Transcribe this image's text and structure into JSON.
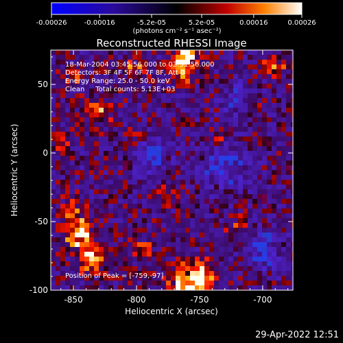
{
  "chart_data": {
    "type": "heatmap",
    "title": "Reconstructed RHESSI Image",
    "xlabel": "Heliocentric X (arcsec)",
    "ylabel": "Heliocentric Y (arcsec)",
    "xlim": [
      -868,
      -676
    ],
    "ylim": [
      -100,
      75
    ],
    "x_ticks": [
      -850,
      -800,
      -750,
      -700
    ],
    "y_ticks": [
      -100,
      -50,
      0,
      50
    ],
    "x_tick_labels": [
      "-850",
      "-800",
      "-750",
      "-700"
    ],
    "y_tick_labels": [
      "-100",
      "-50",
      "0",
      "50"
    ],
    "colorbar": {
      "min": -0.00026,
      "max": 0.00026,
      "ticks": [
        -0.00026,
        -0.00016,
        -5.2e-05,
        5.2e-05,
        0.00016,
        0.00026
      ],
      "tick_labels": [
        "-0.00026",
        "-0.00016",
        "-5.2e-05",
        "5.2e-05",
        "0.00016",
        "0.00026"
      ],
      "units_label": "(photons cm⁻² s⁻¹ asec⁻²)"
    },
    "peak": [
      -759,
      -97
    ]
  },
  "annotations": {
    "time_range": "18-Mar-2004 03:45:56.000 to 03:51:56.000",
    "detectors": "Detectors: 3F 4F 5F 6F 7F 8F, Att 0",
    "energy": "Energy Range: 25.0 - 50.0 keV",
    "algorithm": "Clean     Total counts: 5.13E+03",
    "peak_label": "Position of Peak = [-759,-97]"
  },
  "footer": "29-Apr-2022 12:51"
}
